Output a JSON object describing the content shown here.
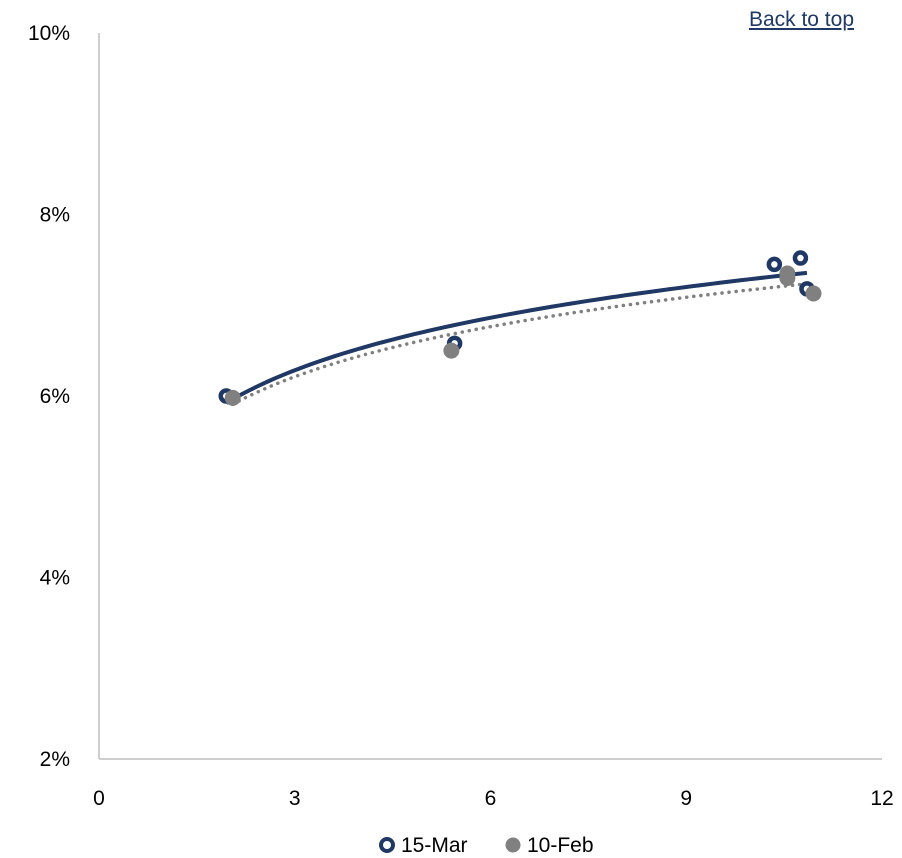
{
  "links": {
    "back_to_top": "Back to top"
  },
  "colors": {
    "series_15mar": "#1f3864",
    "series_10feb": "#808080",
    "axis": "#bfbfbf",
    "link": "#1f3864"
  },
  "chart_data": {
    "type": "scatter",
    "title": "",
    "xlabel": "",
    "ylabel": "",
    "xlim": [
      0,
      12
    ],
    "ylim": [
      2,
      10
    ],
    "x_ticks": [
      0,
      3,
      6,
      9,
      12
    ],
    "x_tick_labels": [
      "0",
      "3",
      "6",
      "9",
      "12"
    ],
    "y_ticks": [
      2,
      4,
      6,
      8,
      10
    ],
    "y_tick_labels": [
      "2%",
      "4%",
      "6%",
      "8%",
      "10%"
    ],
    "grid": false,
    "legend_position": "bottom",
    "series": [
      {
        "name": "15-Mar",
        "marker": "hollow-circle",
        "color": "#1f3864",
        "trendline": "logarithmic-solid",
        "points": [
          {
            "x": 1.95,
            "y": 6.0
          },
          {
            "x": 5.45,
            "y": 6.58
          },
          {
            "x": 10.35,
            "y": 7.45
          },
          {
            "x": 10.75,
            "y": 7.52
          },
          {
            "x": 10.85,
            "y": 7.18
          }
        ]
      },
      {
        "name": "10-Feb",
        "marker": "filled-circle",
        "color": "#808080",
        "trendline": "logarithmic-dotted",
        "points": [
          {
            "x": 2.05,
            "y": 5.98
          },
          {
            "x": 5.4,
            "y": 6.5
          },
          {
            "x": 10.55,
            "y": 7.3
          },
          {
            "x": 10.55,
            "y": 7.35
          },
          {
            "x": 10.95,
            "y": 7.13
          }
        ]
      }
    ]
  }
}
